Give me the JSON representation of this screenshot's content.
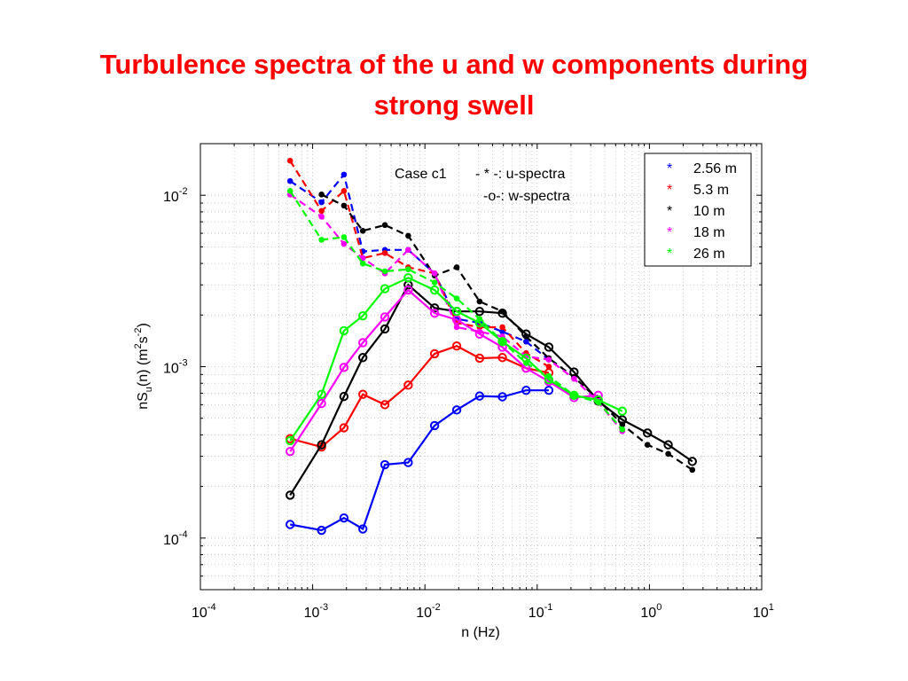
{
  "title": {
    "line1": "Turbulence spectra of the u and w components during",
    "line2": "strong swell",
    "color": "#ff0000"
  },
  "chart_data": {
    "type": "line",
    "x_scale": "log",
    "y_scale": "log",
    "xlim": [
      0.0001,
      10
    ],
    "ylim": [
      5e-05,
      0.02
    ],
    "grid": true,
    "xlabel": "n (Hz)",
    "ylabel": "nS_u(n) (m^2s^-2)",
    "x_ticks": [
      {
        "value": 0.0001,
        "base": "10",
        "exp": "-4"
      },
      {
        "value": 0.001,
        "base": "10",
        "exp": "-3"
      },
      {
        "value": 0.01,
        "base": "10",
        "exp": "-2"
      },
      {
        "value": 0.1,
        "base": "10",
        "exp": "-1"
      },
      {
        "value": 1,
        "base": "10",
        "exp": "0"
      },
      {
        "value": 10,
        "base": "10",
        "exp": "1"
      }
    ],
    "y_ticks": [
      {
        "value": 0.0001,
        "base": "10",
        "exp": "-4"
      },
      {
        "value": 0.001,
        "base": "10",
        "exp": "-3"
      },
      {
        "value": 0.01,
        "base": "10",
        "exp": "-2"
      }
    ],
    "annotations": {
      "case": "Case c1",
      "u_key": "- * -: u-spectra",
      "w_key": "-o-: w-spectra"
    },
    "legend_position": "top-right",
    "legend": [
      {
        "label": "2.56 m",
        "color": "#0000ff",
        "marker": "*"
      },
      {
        "label": "5.3 m",
        "color": "#ff0000",
        "marker": "*"
      },
      {
        "label": "10 m",
        "color": "#000000",
        "marker": "*"
      },
      {
        "label": "18 m",
        "color": "#ff00ff",
        "marker": "*"
      },
      {
        "label": "26 m",
        "color": "#00ff00",
        "marker": "*"
      }
    ],
    "series": [
      {
        "name": "2.56 m",
        "component": "u",
        "color": "#0000ff",
        "style": "dashed",
        "marker": "dot",
        "x": [
          0.00063,
          0.0012,
          0.0019,
          0.0028,
          0.0044,
          0.0071,
          0.0122,
          0.0192,
          0.0307,
          0.049,
          0.0797,
          0.127
        ],
        "y": [
          0.0121,
          0.0091,
          0.0132,
          0.0047,
          0.0048,
          0.0048,
          0.0035,
          0.0019,
          0.0018,
          0.0016,
          0.0014,
          0.0011
        ]
      },
      {
        "name": "2.56 m",
        "component": "w",
        "color": "#0000ff",
        "style": "solid",
        "marker": "circle",
        "x": [
          0.00063,
          0.0012,
          0.0019,
          0.0028,
          0.0044,
          0.0071,
          0.0122,
          0.0192,
          0.0307,
          0.049,
          0.0797,
          0.127
        ],
        "y": [
          0.00012,
          0.000111,
          0.000131,
          0.000113,
          0.000268,
          0.000276,
          0.000453,
          0.000559,
          0.000674,
          0.000667,
          0.000728,
          0.000728
        ]
      },
      {
        "name": "5.3 m",
        "component": "u",
        "color": "#ff0000",
        "style": "dashed",
        "marker": "dot",
        "x": [
          0.00063,
          0.0012,
          0.0019,
          0.0028,
          0.0044,
          0.0071,
          0.0122,
          0.0192,
          0.0307,
          0.049,
          0.0797,
          0.127
        ],
        "y": [
          0.0159,
          0.0081,
          0.0106,
          0.0043,
          0.0046,
          0.0038,
          0.0035,
          0.0018,
          0.0017,
          0.0017,
          0.0012,
          0.001
        ]
      },
      {
        "name": "5.3 m",
        "component": "w",
        "color": "#ff0000",
        "style": "solid",
        "marker": "circle",
        "x": [
          0.00063,
          0.0012,
          0.0019,
          0.0028,
          0.0044,
          0.0071,
          0.0122,
          0.0192,
          0.0307,
          0.049,
          0.0797,
          0.127
        ],
        "y": [
          0.00038,
          0.00034,
          0.00044,
          0.00069,
          0.0006,
          0.00078,
          0.00119,
          0.00132,
          0.00112,
          0.00113,
          0.00098,
          0.00092
        ]
      },
      {
        "name": "10 m",
        "component": "u",
        "color": "#000000",
        "style": "dashed",
        "marker": "dot",
        "x": [
          0.0012,
          0.0019,
          0.0028,
          0.0044,
          0.0071,
          0.0122,
          0.0192,
          0.0307,
          0.049,
          0.0797,
          0.127,
          0.213,
          0.35,
          0.573,
          0.961,
          1.47,
          2.41
        ],
        "y": [
          0.0101,
          0.0087,
          0.0062,
          0.0067,
          0.0058,
          0.0034,
          0.0038,
          0.0024,
          0.0021,
          0.0015,
          0.00112,
          0.00087,
          0.00064,
          0.00046,
          0.00035,
          0.00031,
          0.00025
        ]
      },
      {
        "name": "10 m",
        "component": "w",
        "color": "#000000",
        "style": "solid",
        "marker": "circle",
        "x": [
          0.00063,
          0.0012,
          0.0019,
          0.0028,
          0.0044,
          0.0071,
          0.0122,
          0.0192,
          0.0307,
          0.049,
          0.0797,
          0.127,
          0.213,
          0.35,
          0.573,
          0.961,
          1.47,
          2.41
        ],
        "y": [
          0.000178,
          0.00035,
          0.00067,
          0.00113,
          0.00166,
          0.003,
          0.0022,
          0.0021,
          0.0021,
          0.00205,
          0.00155,
          0.0013,
          0.00093,
          0.00063,
          0.00049,
          0.00041,
          0.00035,
          0.00028
        ]
      },
      {
        "name": "18 m",
        "component": "u",
        "color": "#ff00ff",
        "style": "dashed",
        "marker": "dot",
        "x": [
          0.00063,
          0.0012,
          0.0019,
          0.0028,
          0.0044,
          0.0071,
          0.0122,
          0.0192,
          0.0307,
          0.049,
          0.0797,
          0.127,
          0.213,
          0.35,
          0.573
        ],
        "y": [
          0.0101,
          0.0075,
          0.0052,
          0.0043,
          0.0035,
          0.0048,
          0.0035,
          0.0017,
          0.0016,
          0.0015,
          0.00115,
          0.0011,
          0.00085,
          0.00062,
          0.00042
        ]
      },
      {
        "name": "18 m",
        "component": "w",
        "color": "#ff00ff",
        "style": "solid",
        "marker": "circle",
        "x": [
          0.00063,
          0.0012,
          0.0019,
          0.0028,
          0.0044,
          0.0071,
          0.0122,
          0.0192,
          0.0307,
          0.049,
          0.0797,
          0.127,
          0.213,
          0.35
        ],
        "y": [
          0.00032,
          0.00061,
          0.00099,
          0.00138,
          0.00195,
          0.0028,
          0.00205,
          0.00188,
          0.00155,
          0.0013,
          0.00098,
          0.00082,
          0.00066,
          0.00068
        ]
      },
      {
        "name": "26 m",
        "component": "u",
        "color": "#00ff00",
        "style": "dashed",
        "marker": "dot",
        "x": [
          0.00063,
          0.0012,
          0.0019,
          0.0028,
          0.0044,
          0.0071,
          0.0122,
          0.0192,
          0.0307,
          0.049,
          0.0797,
          0.127,
          0.213,
          0.35,
          0.573
        ],
        "y": [
          0.0106,
          0.0055,
          0.0057,
          0.004,
          0.0036,
          0.0037,
          0.0031,
          0.0025,
          0.0019,
          0.0014,
          0.00105,
          0.00088,
          0.00068,
          0.00062,
          0.00043
        ]
      },
      {
        "name": "26 m",
        "component": "w",
        "color": "#00ff00",
        "style": "solid",
        "marker": "circle",
        "x": [
          0.00063,
          0.0012,
          0.0019,
          0.0028,
          0.0044,
          0.0071,
          0.0122,
          0.0192,
          0.0307,
          0.049,
          0.0797,
          0.127,
          0.213,
          0.35,
          0.573
        ],
        "y": [
          0.00037,
          0.00069,
          0.00162,
          0.00198,
          0.00285,
          0.0033,
          0.0028,
          0.0021,
          0.0018,
          0.0014,
          0.00112,
          0.00084,
          0.00068,
          0.00064,
          0.00055
        ]
      }
    ]
  }
}
